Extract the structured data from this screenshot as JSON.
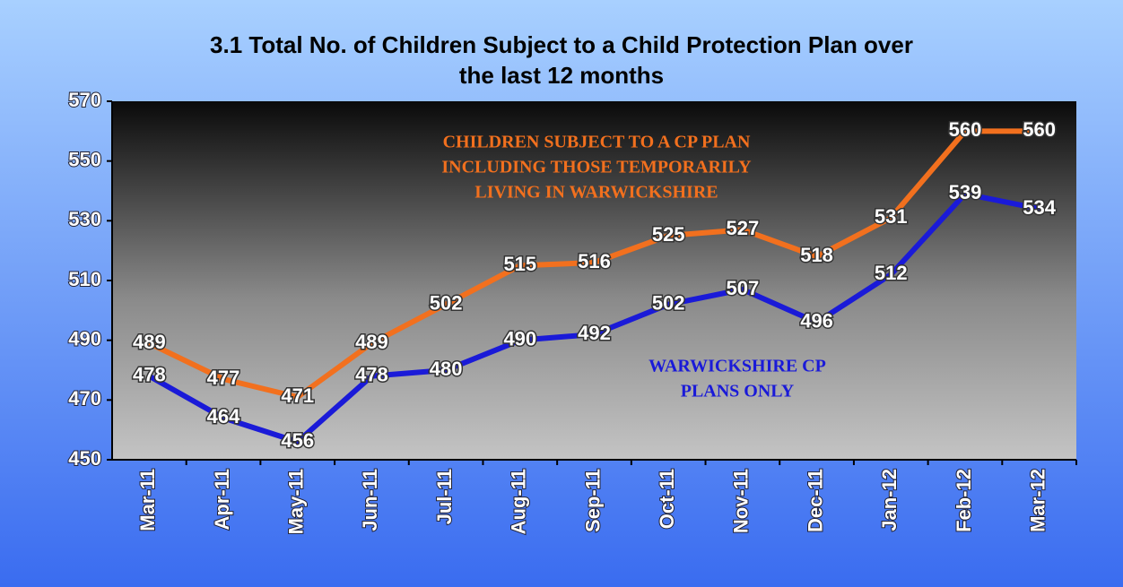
{
  "chart_data": {
    "type": "line",
    "title": [
      "3.1  Total No. of Children Subject to a Child Protection Plan over",
      "the last 12 months"
    ],
    "categories": [
      "Mar-11",
      "Apr-11",
      "May-11",
      "Jun-11",
      "Jul-11",
      "Aug-11",
      "Sep-11",
      "Oct-11",
      "Nov-11",
      "Dec-11",
      "Jan-12",
      "Feb-12",
      "Mar-12"
    ],
    "series": [
      {
        "color": "#f2701e",
        "values": [
          489,
          477,
          471,
          489,
          502,
          515,
          516,
          525,
          527,
          518,
          531,
          560,
          560
        ]
      },
      {
        "color": "#1a1ad8",
        "values": [
          478,
          464,
          456,
          478,
          480,
          490,
          492,
          502,
          507,
          496,
          512,
          539,
          534
        ]
      }
    ],
    "annotations": [
      {
        "lines": [
          "CHILDREN SUBJECT TO A CP PLAN",
          "INCLUDING THOSE TEMPORARILY",
          "LIVING IN WARWICKSHIRE"
        ],
        "color": "#f2701e"
      },
      {
        "lines": [
          "WARWICKSHIRE CP",
          "PLANS ONLY"
        ],
        "color": "#1a1ad8"
      }
    ],
    "ylim": [
      450,
      570
    ],
    "yticks": [
      450,
      470,
      490,
      510,
      530,
      550,
      570
    ]
  }
}
